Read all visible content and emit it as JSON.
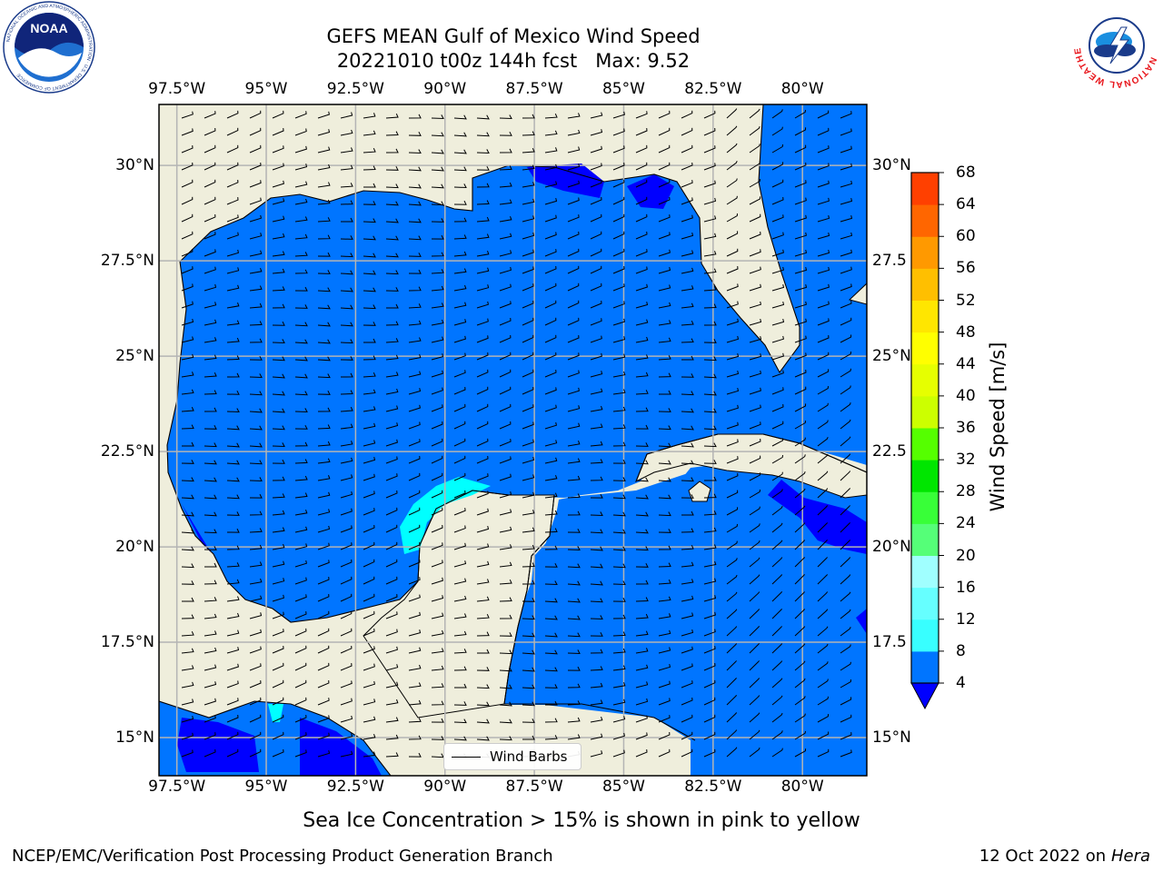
{
  "title": {
    "line1": "GEFS MEAN Gulf of Mexico Wind Speed",
    "line2": "20221010 t00z 144h fcst   Max: 9.52"
  },
  "map": {
    "lon_range": [
      -98.0,
      -78.2
    ],
    "lat_range": [
      14.0,
      31.6
    ],
    "lon_ticks": [
      "97.5°W",
      "95°W",
      "92.5°W",
      "90°W",
      "87.5°W",
      "85°W",
      "82.5°W",
      "80°W"
    ],
    "lon_values": [
      -97.5,
      -95,
      -92.5,
      -90,
      -87.5,
      -85,
      -82.5,
      -80
    ],
    "lat_ticks_left": [
      "30°N",
      "27.5°N",
      "25°N",
      "22.5°N",
      "20°N",
      "17.5°N",
      "15°N"
    ],
    "lat_ticks_right": [
      "30°N",
      "27.5",
      "25°N",
      "22.5",
      "20°N",
      "17.5",
      "15°N"
    ],
    "lat_values": [
      30,
      27.5,
      25,
      22.5,
      20,
      17.5,
      15
    ],
    "colors": {
      "land": "#efeedc",
      "ocean": "#0075ff",
      "calm": "#0000ff",
      "light": "#00ffff",
      "grid": "#b4b4b4"
    }
  },
  "colorbar": {
    "label": "Wind Speed [m/s]",
    "ticks": [
      "4",
      "8",
      "12",
      "16",
      "20",
      "24",
      "28",
      "32",
      "36",
      "40",
      "44",
      "48",
      "52",
      "56",
      "60",
      "64",
      "68"
    ],
    "colors": [
      "#0075ff",
      "#00ffff",
      "#38ffff",
      "#66ffff",
      "#a0ffff",
      "#55ff78",
      "#38ff38",
      "#00e600",
      "#55ff00",
      "#ccff00",
      "#e6ff00",
      "#ffff00",
      "#ffe600",
      "#ffbf00",
      "#ff9900",
      "#ff6600",
      "#ff4000",
      "#ff0000"
    ],
    "extend_color": "#0000ff"
  },
  "legend": {
    "label": "Wind Barbs"
  },
  "subtitle": "Sea Ice Concentration > 15% is shown in pink to yellow",
  "footer": {
    "left": "NCEP/EMC/Verification Post Processing Product Generation Branch",
    "right_date": "12 Oct 2022 on ",
    "right_host": "Hera"
  },
  "logos": {
    "noaa_text": "NOAA",
    "noaa_ring": "NATIONAL OCEANIC AND ATMOSPHERIC ADMINISTRATION · U.S. DEPARTMENT OF COMMERCE",
    "nws_ring": "NATIONAL WEATHER SERVICE"
  }
}
